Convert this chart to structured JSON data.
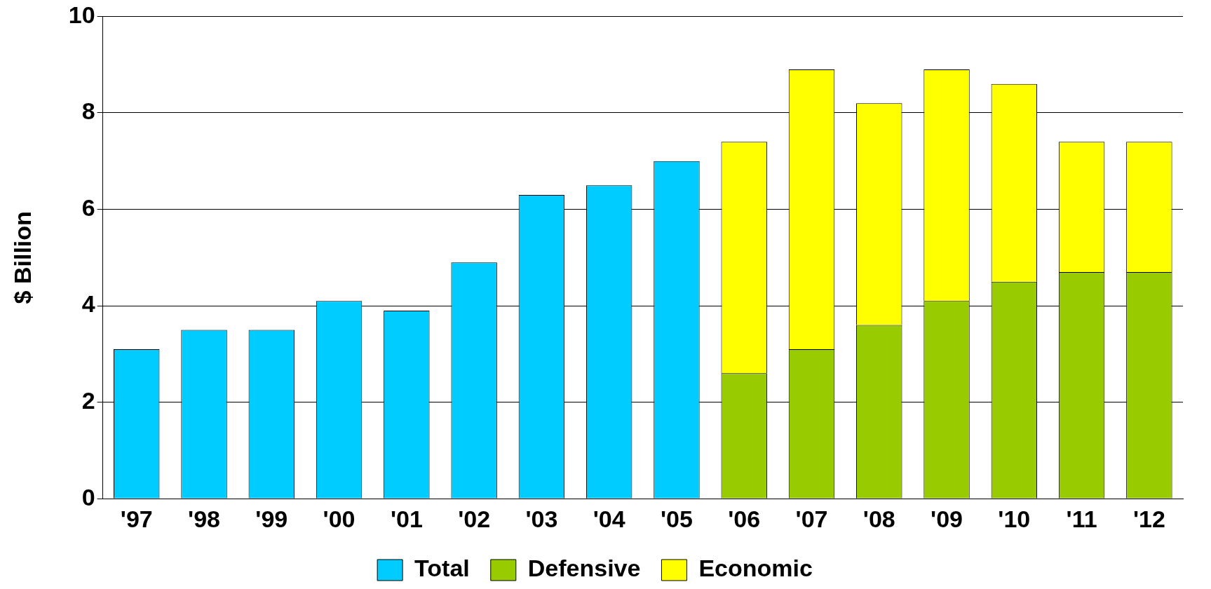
{
  "chart_data": {
    "type": "bar",
    "ylabel": "$ Billion",
    "stacked": true,
    "categories": [
      "'97",
      "'98",
      "'99",
      "'00",
      "'01",
      "'02",
      "'03",
      "'04",
      "'05",
      "'06",
      "'07",
      "'08",
      "'09",
      "'10",
      "'11",
      "'12"
    ],
    "series": [
      {
        "name": "Total",
        "color": "#00ccff",
        "values": [
          3.1,
          3.5,
          3.5,
          4.1,
          3.9,
          4.9,
          6.3,
          6.5,
          7.0,
          null,
          null,
          null,
          null,
          null,
          null,
          null
        ]
      },
      {
        "name": "Defensive",
        "color": "#99cc00",
        "values": [
          null,
          null,
          null,
          null,
          null,
          null,
          null,
          null,
          null,
          2.6,
          3.1,
          3.6,
          4.1,
          4.5,
          4.7,
          4.7
        ]
      },
      {
        "name": "Economic",
        "color": "#ffff00",
        "values": [
          null,
          null,
          null,
          null,
          null,
          null,
          null,
          null,
          null,
          4.8,
          5.8,
          4.6,
          4.8,
          4.1,
          2.7,
          2.7
        ]
      }
    ],
    "ylim": [
      0,
      10
    ],
    "yticks": [
      0,
      2,
      4,
      6,
      8,
      10
    ],
    "grid": "y",
    "legend": "bottom"
  }
}
